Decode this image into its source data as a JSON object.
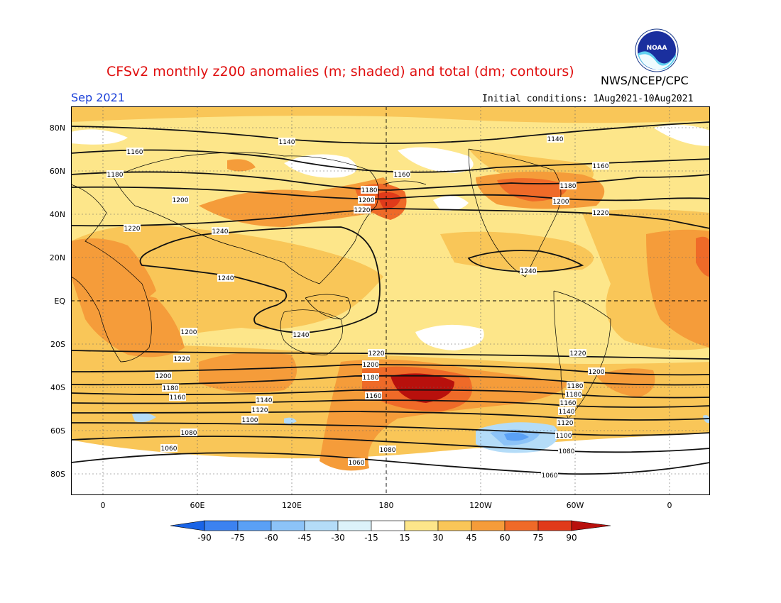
{
  "header": {
    "title": "CFSv2 monthly z200 anomalies (m; shaded) and total (dm; contours)",
    "agency": "NWS/NCEP/CPC",
    "month": "Sep 2021",
    "initial_conditions": "Initial conditions: 1Aug2021-10Aug2021",
    "logo_text": "NOAA"
  },
  "axes": {
    "lat_labels": [
      "80N",
      "60N",
      "40N",
      "20N",
      "EQ",
      "20S",
      "40S",
      "60S",
      "80S"
    ],
    "lon_labels": [
      "0",
      "60E",
      "120E",
      "180",
      "120W",
      "60W",
      "0"
    ]
  },
  "colorbar": {
    "levels": [
      "-90",
      "-75",
      "-60",
      "-45",
      "-30",
      "-15",
      "15",
      "30",
      "45",
      "60",
      "75",
      "90"
    ],
    "colors": [
      "#1a64e6",
      "#3c82f0",
      "#5aa0f5",
      "#8cc3f8",
      "#b4dcf8",
      "#dcf2fa",
      "#ffffff",
      "#fde68a",
      "#f9c658",
      "#f59c3a",
      "#ef6a28",
      "#e03a1a",
      "#b8100c"
    ]
  },
  "contour_labels": [
    {
      "text": "1140"
    },
    {
      "text": "1160"
    },
    {
      "text": "1180"
    },
    {
      "text": "1160"
    },
    {
      "text": "1180"
    },
    {
      "text": "1200"
    },
    {
      "text": "1220"
    },
    {
      "text": "1140"
    },
    {
      "text": "1160"
    },
    {
      "text": "1180"
    },
    {
      "text": "1200"
    },
    {
      "text": "1220"
    },
    {
      "text": "1200"
    },
    {
      "text": "1220"
    },
    {
      "text": "1240"
    },
    {
      "text": "1240"
    },
    {
      "text": "1240"
    },
    {
      "text": "1240"
    },
    {
      "text": "1220"
    },
    {
      "text": "1200"
    },
    {
      "text": "1180"
    },
    {
      "text": "1160"
    },
    {
      "text": "1220"
    },
    {
      "text": "1200"
    },
    {
      "text": "1180"
    },
    {
      "text": "1160"
    },
    {
      "text": "1140"
    },
    {
      "text": "1120"
    },
    {
      "text": "1100"
    },
    {
      "text": "1080"
    },
    {
      "text": "1060"
    },
    {
      "text": "1080"
    },
    {
      "text": "1060"
    },
    {
      "text": "1220"
    },
    {
      "text": "1200"
    },
    {
      "text": "1180"
    },
    {
      "text": "1180"
    },
    {
      "text": "1160"
    },
    {
      "text": "1140"
    },
    {
      "text": "1120"
    },
    {
      "text": "1100"
    },
    {
      "text": "1080"
    },
    {
      "text": "1060"
    },
    {
      "text": "1200"
    }
  ]
}
